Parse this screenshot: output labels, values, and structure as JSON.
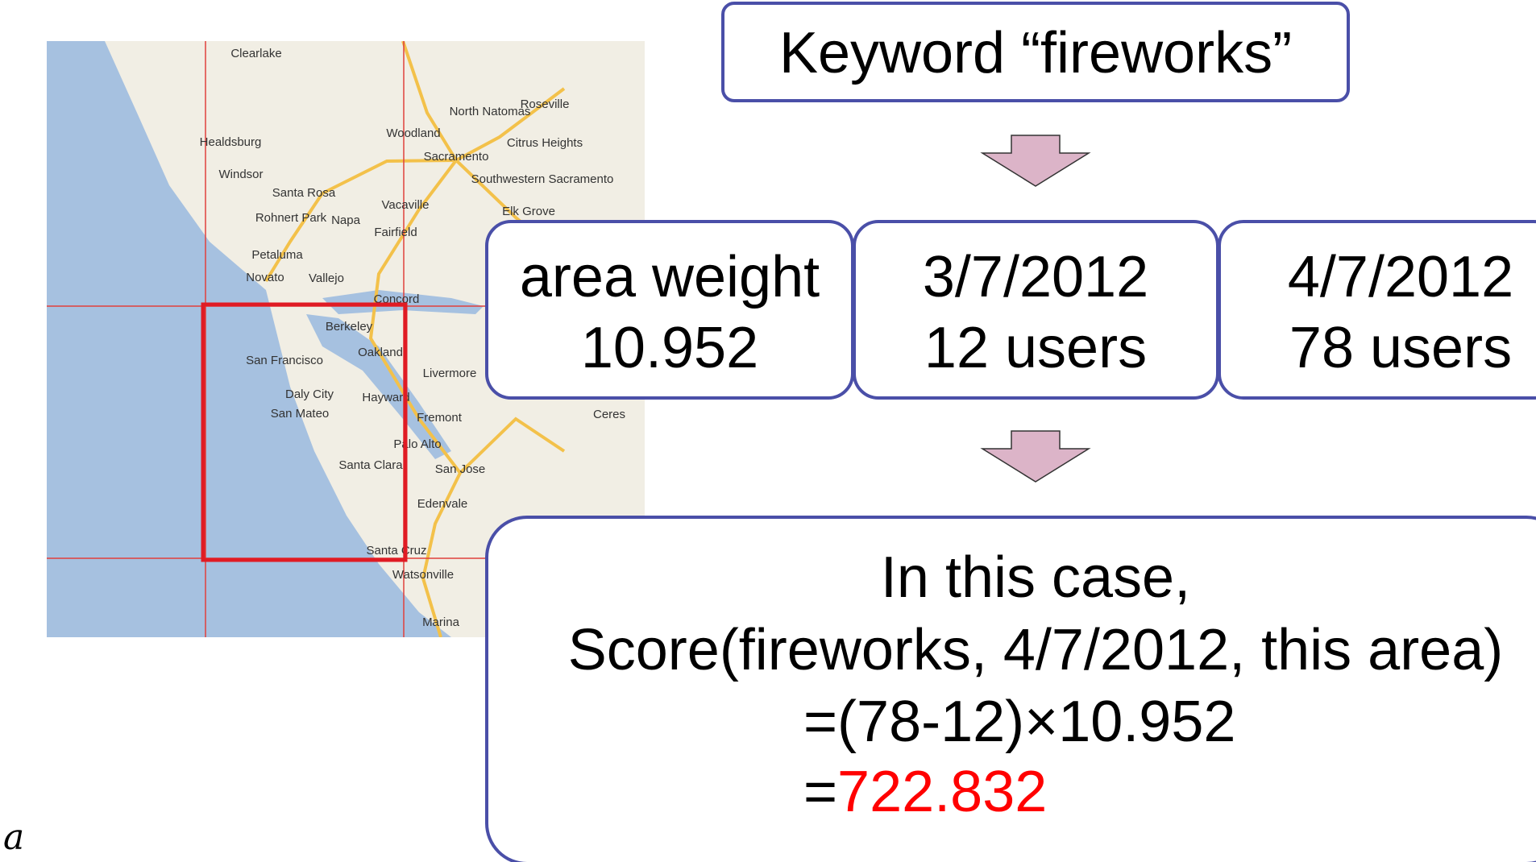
{
  "keyword": "Keyword “fireworks”",
  "boxes": [
    {
      "line1": "area weight",
      "line2": "10.952"
    },
    {
      "line1": "3/7/2012",
      "line2": "12 users"
    },
    {
      "line1": "4/7/2012",
      "line2": "78 users"
    }
  ],
  "result": {
    "line1": "In this case,",
    "line2": "Score(fireworks, 4/7/2012, this area)",
    "line3": "=(78-12)×10.952",
    "line4_prefix": "=",
    "line4_value": "722.832"
  },
  "caption": "a",
  "map_labels": [
    "Clearlake",
    "North Natomas",
    "Roseville",
    "Woodland",
    "Healdsburg",
    "Sacramento",
    "Citrus Heights",
    "Windsor",
    "Santa Rosa",
    "Southwestern Sacramento",
    "Rohnert Park",
    "Napa",
    "Vacaville",
    "Elk Grove",
    "Fairfield",
    "Petaluma",
    "Novato",
    "Vallejo",
    "Concord",
    "Berkeley",
    "San Francisco",
    "Oakland",
    "Livermore",
    "Daly City",
    "Hayward",
    "San Mateo",
    "Fremont",
    "Palo Alto",
    "Santa Clara",
    "San Jose",
    "Edenvale",
    "Santa Cruz",
    "Watsonville",
    "Marina",
    "Ceres"
  ]
}
